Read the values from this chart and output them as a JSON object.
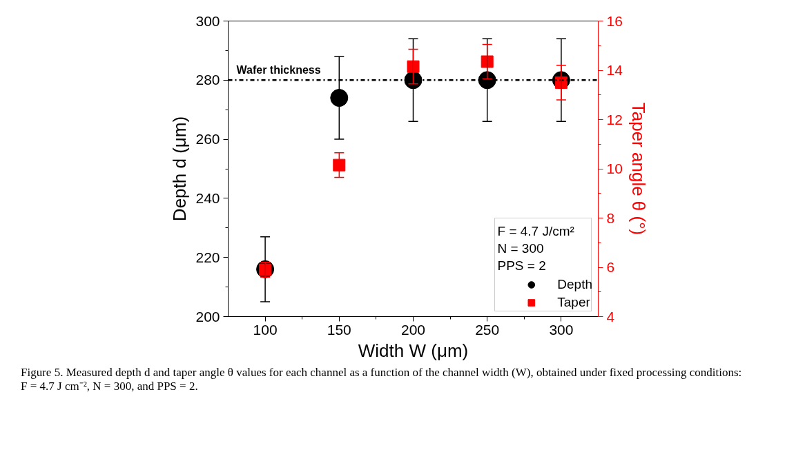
{
  "chart_data": {
    "type": "scatter",
    "xlabel": "Width W (μm)",
    "ylabel": "Depth d (μm)",
    "y2label": "Taper angle θ (°)",
    "x": [
      100,
      150,
      200,
      250,
      300
    ],
    "series": [
      {
        "name": "Depth",
        "color": "#000000",
        "marker": "circle",
        "values": [
          216,
          274,
          280,
          280,
          280
        ],
        "errors": [
          11,
          14,
          14,
          14,
          14
        ]
      },
      {
        "name": "Taper",
        "color": "#ff0000",
        "marker": "square",
        "axis": "y2",
        "values": [
          5.9,
          10.15,
          14.15,
          14.35,
          13.5
        ],
        "errors": [
          0.3,
          0.5,
          0.7,
          0.7,
          0.7
        ]
      }
    ],
    "xlim": [
      75,
      325
    ],
    "xticks": [
      100,
      150,
      200,
      250,
      300
    ],
    "ylim": [
      200,
      300
    ],
    "yticks": [
      200,
      220,
      240,
      260,
      280,
      300
    ],
    "y2lim": [
      4,
      16
    ],
    "y2ticks": [
      4,
      6,
      8,
      10,
      12,
      14,
      16
    ],
    "ref_lines": [
      {
        "axis": "y",
        "value": 280,
        "label": "Wafer thickness",
        "color": "#000000",
        "line_style": "dashdot"
      }
    ],
    "legend": "bottom right",
    "grid": false,
    "annotations": [
      "F = 4.7 J/cm²",
      "N = 300",
      "PPS = 2",
      "Figure 5. Measured depth d and taper angle θ values for each channel as a function of the channel width (W), obtained under fixed processing conditions: F = 4.7 J cm⁻², N = 300, and PPS = 2."
    ]
  }
}
